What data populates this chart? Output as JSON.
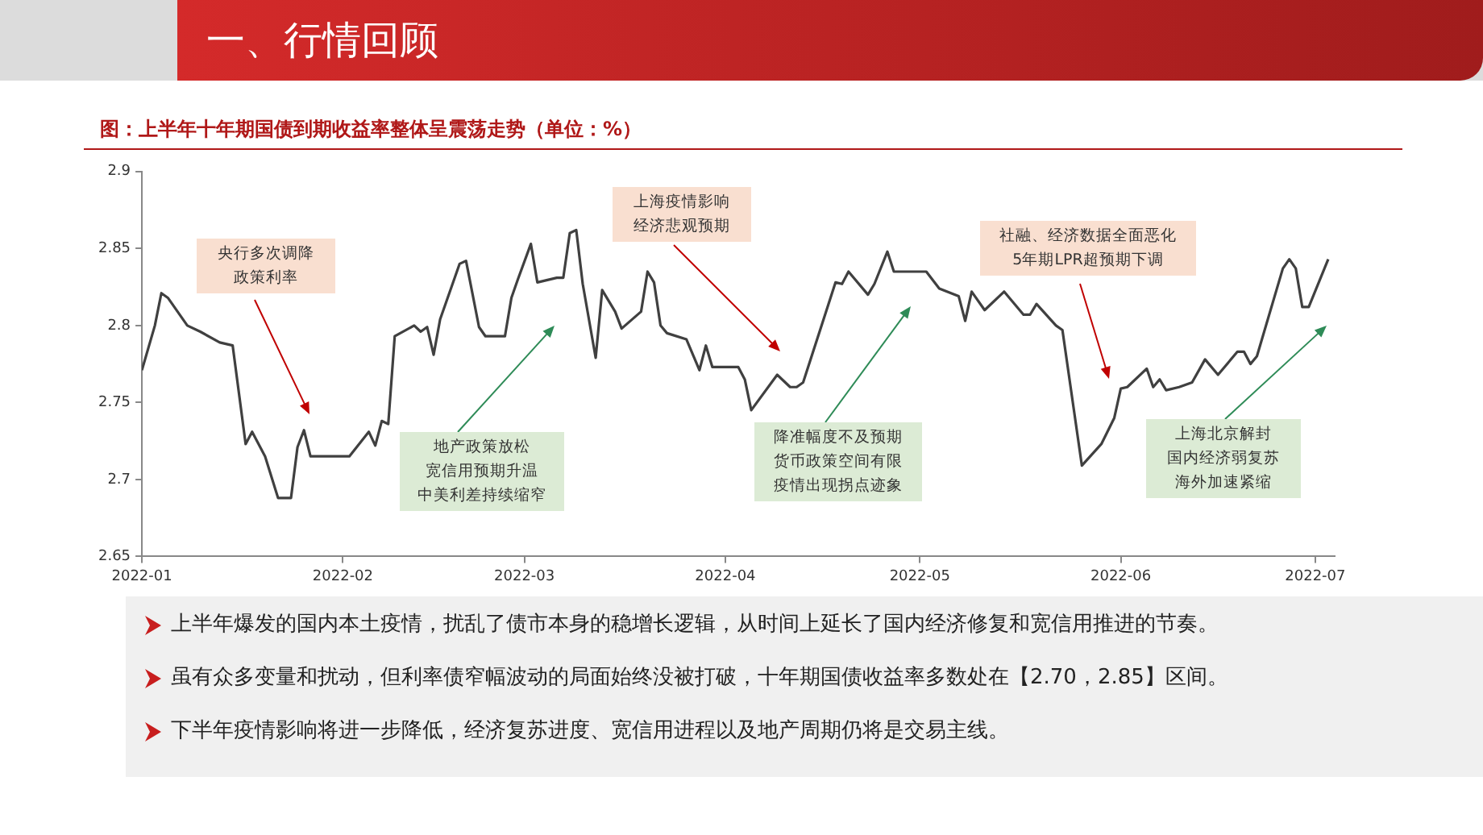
{
  "chart_data": {
    "type": "line",
    "title": "一、行情回顾",
    "subtitle": "图：上半年十年期国债到期收益率整体呈震荡走势（单位：%）",
    "x": [
      "2022-01-01",
      "2022-01-03",
      "2022-01-04",
      "2022-01-05",
      "2022-01-08",
      "2022-01-10",
      "2022-01-13",
      "2022-01-15",
      "2022-01-17",
      "2022-01-18",
      "2022-01-20",
      "2022-01-22",
      "2022-01-24",
      "2022-01-25",
      "2022-01-26",
      "2022-01-27",
      "2022-02-02",
      "2022-02-05",
      "2022-02-06",
      "2022-02-07",
      "2022-02-08",
      "2022-02-09",
      "2022-02-12",
      "2022-02-13",
      "2022-02-14",
      "2022-02-15",
      "2022-02-16",
      "2022-02-19",
      "2022-02-20",
      "2022-02-22",
      "2022-02-23",
      "2022-02-26",
      "2022-02-27",
      "2022-02-28",
      "2022-03-02",
      "2022-03-03",
      "2022-03-06",
      "2022-03-07",
      "2022-03-08",
      "2022-03-09",
      "2022-03-10",
      "2022-03-12",
      "2022-03-13",
      "2022-03-15",
      "2022-03-16",
      "2022-03-19",
      "2022-03-20",
      "2022-03-21",
      "2022-03-22",
      "2022-03-23",
      "2022-03-26",
      "2022-03-28",
      "2022-03-29",
      "2022-03-30",
      "2022-04-03",
      "2022-04-04",
      "2022-04-05",
      "2022-04-09",
      "2022-04-11",
      "2022-04-12",
      "2022-04-13",
      "2022-04-18",
      "2022-04-19",
      "2022-04-20",
      "2022-04-23",
      "2022-04-24",
      "2022-04-26",
      "2022-04-27",
      "2022-05-02",
      "2022-05-04",
      "2022-05-07",
      "2022-05-08",
      "2022-05-09",
      "2022-05-11",
      "2022-05-14",
      "2022-05-17",
      "2022-05-18",
      "2022-05-19",
      "2022-05-22",
      "2022-05-23",
      "2022-05-26",
      "2022-05-29",
      "2022-05-31",
      "2022-06-01",
      "2022-06-02",
      "2022-06-05",
      "2022-06-06",
      "2022-06-07",
      "2022-06-08",
      "2022-06-10",
      "2022-06-12",
      "2022-06-14",
      "2022-06-16",
      "2022-06-19",
      "2022-06-20",
      "2022-06-21",
      "2022-06-22",
      "2022-06-26",
      "2022-06-27",
      "2022-06-28",
      "2022-06-29",
      "2022-06-30",
      "2022-07-03"
    ],
    "series": [
      {
        "color": "#404040",
        "values": [
          2.771,
          2.8,
          2.821,
          2.818,
          2.8,
          2.796,
          2.789,
          2.787,
          2.723,
          2.731,
          2.715,
          2.688,
          2.688,
          2.721,
          2.732,
          2.715,
          2.715,
          2.731,
          2.722,
          2.738,
          2.736,
          2.793,
          2.8,
          2.796,
          2.799,
          2.781,
          2.804,
          2.84,
          2.842,
          2.799,
          2.793,
          2.793,
          2.818,
          2.83,
          2.853,
          2.828,
          2.831,
          2.831,
          2.86,
          2.862,
          2.827,
          2.779,
          2.823,
          2.809,
          2.798,
          2.809,
          2.835,
          2.828,
          2.8,
          2.795,
          2.791,
          2.771,
          2.787,
          2.773,
          2.773,
          2.765,
          2.745,
          2.768,
          2.76,
          2.76,
          2.763,
          2.828,
          2.827,
          2.835,
          2.82,
          2.827,
          2.848,
          2.835,
          2.835,
          2.824,
          2.819,
          2.803,
          2.822,
          2.81,
          2.822,
          2.807,
          2.807,
          2.814,
          2.8,
          2.797,
          2.709,
          2.723,
          2.74,
          2.759,
          2.76,
          2.772,
          2.76,
          2.765,
          2.758,
          2.76,
          2.763,
          2.778,
          2.768,
          2.783,
          2.783,
          2.775,
          2.78,
          2.837,
          2.843,
          2.837,
          2.812,
          2.812,
          2.843
        ]
      }
    ],
    "xlim": [
      "2022-01-01",
      "2022-07-04"
    ],
    "xticks": [
      {
        "value": "2022-01-01",
        "label": "2022-01"
      },
      {
        "value": "2022-02-01",
        "label": "2022-02"
      },
      {
        "value": "2022-03-01",
        "label": "2022-03"
      },
      {
        "value": "2022-04-01",
        "label": "2022-04"
      },
      {
        "value": "2022-05-01",
        "label": "2022-05"
      },
      {
        "value": "2022-06-01",
        "label": "2022-06"
      },
      {
        "value": "2022-07-01",
        "label": "2022-07"
      }
    ],
    "ylim": [
      2.65,
      2.9
    ],
    "yticks": [
      2.65,
      2.7,
      2.75,
      2.8,
      2.85,
      2.9
    ],
    "grid": false,
    "legend": false,
    "marker": "none",
    "line_style": "solid",
    "annotations": [
      "央行多次调降政策利率",
      "地产政策放松宽信用预期升温中美利差持续缩窄",
      "上海疫情影响经济悲观预期",
      "降准幅度不及预期货币政策空间有限疫情出现拐点迹象",
      "社融、经济数据全面恶化5年期LPR超预期下调",
      "上海北京解封国内经济弱复苏海外加速紧缩",
      "上半年爆发的国内本土疫情，扰乱了债市本身的稳增长逻辑，从时间上延长了国内经济修复和宽信用推进的节奏。",
      "虽有众多变量和扰动，但利率债窄幅波动的局面始终没被打破，十年期国债收益率多数处在【2.70，2.85】区间。",
      "下半年疫情影响将进一步降低，经济复苏进度、宽信用进程以及地产周期仍将是交易主线。"
    ]
  }
}
